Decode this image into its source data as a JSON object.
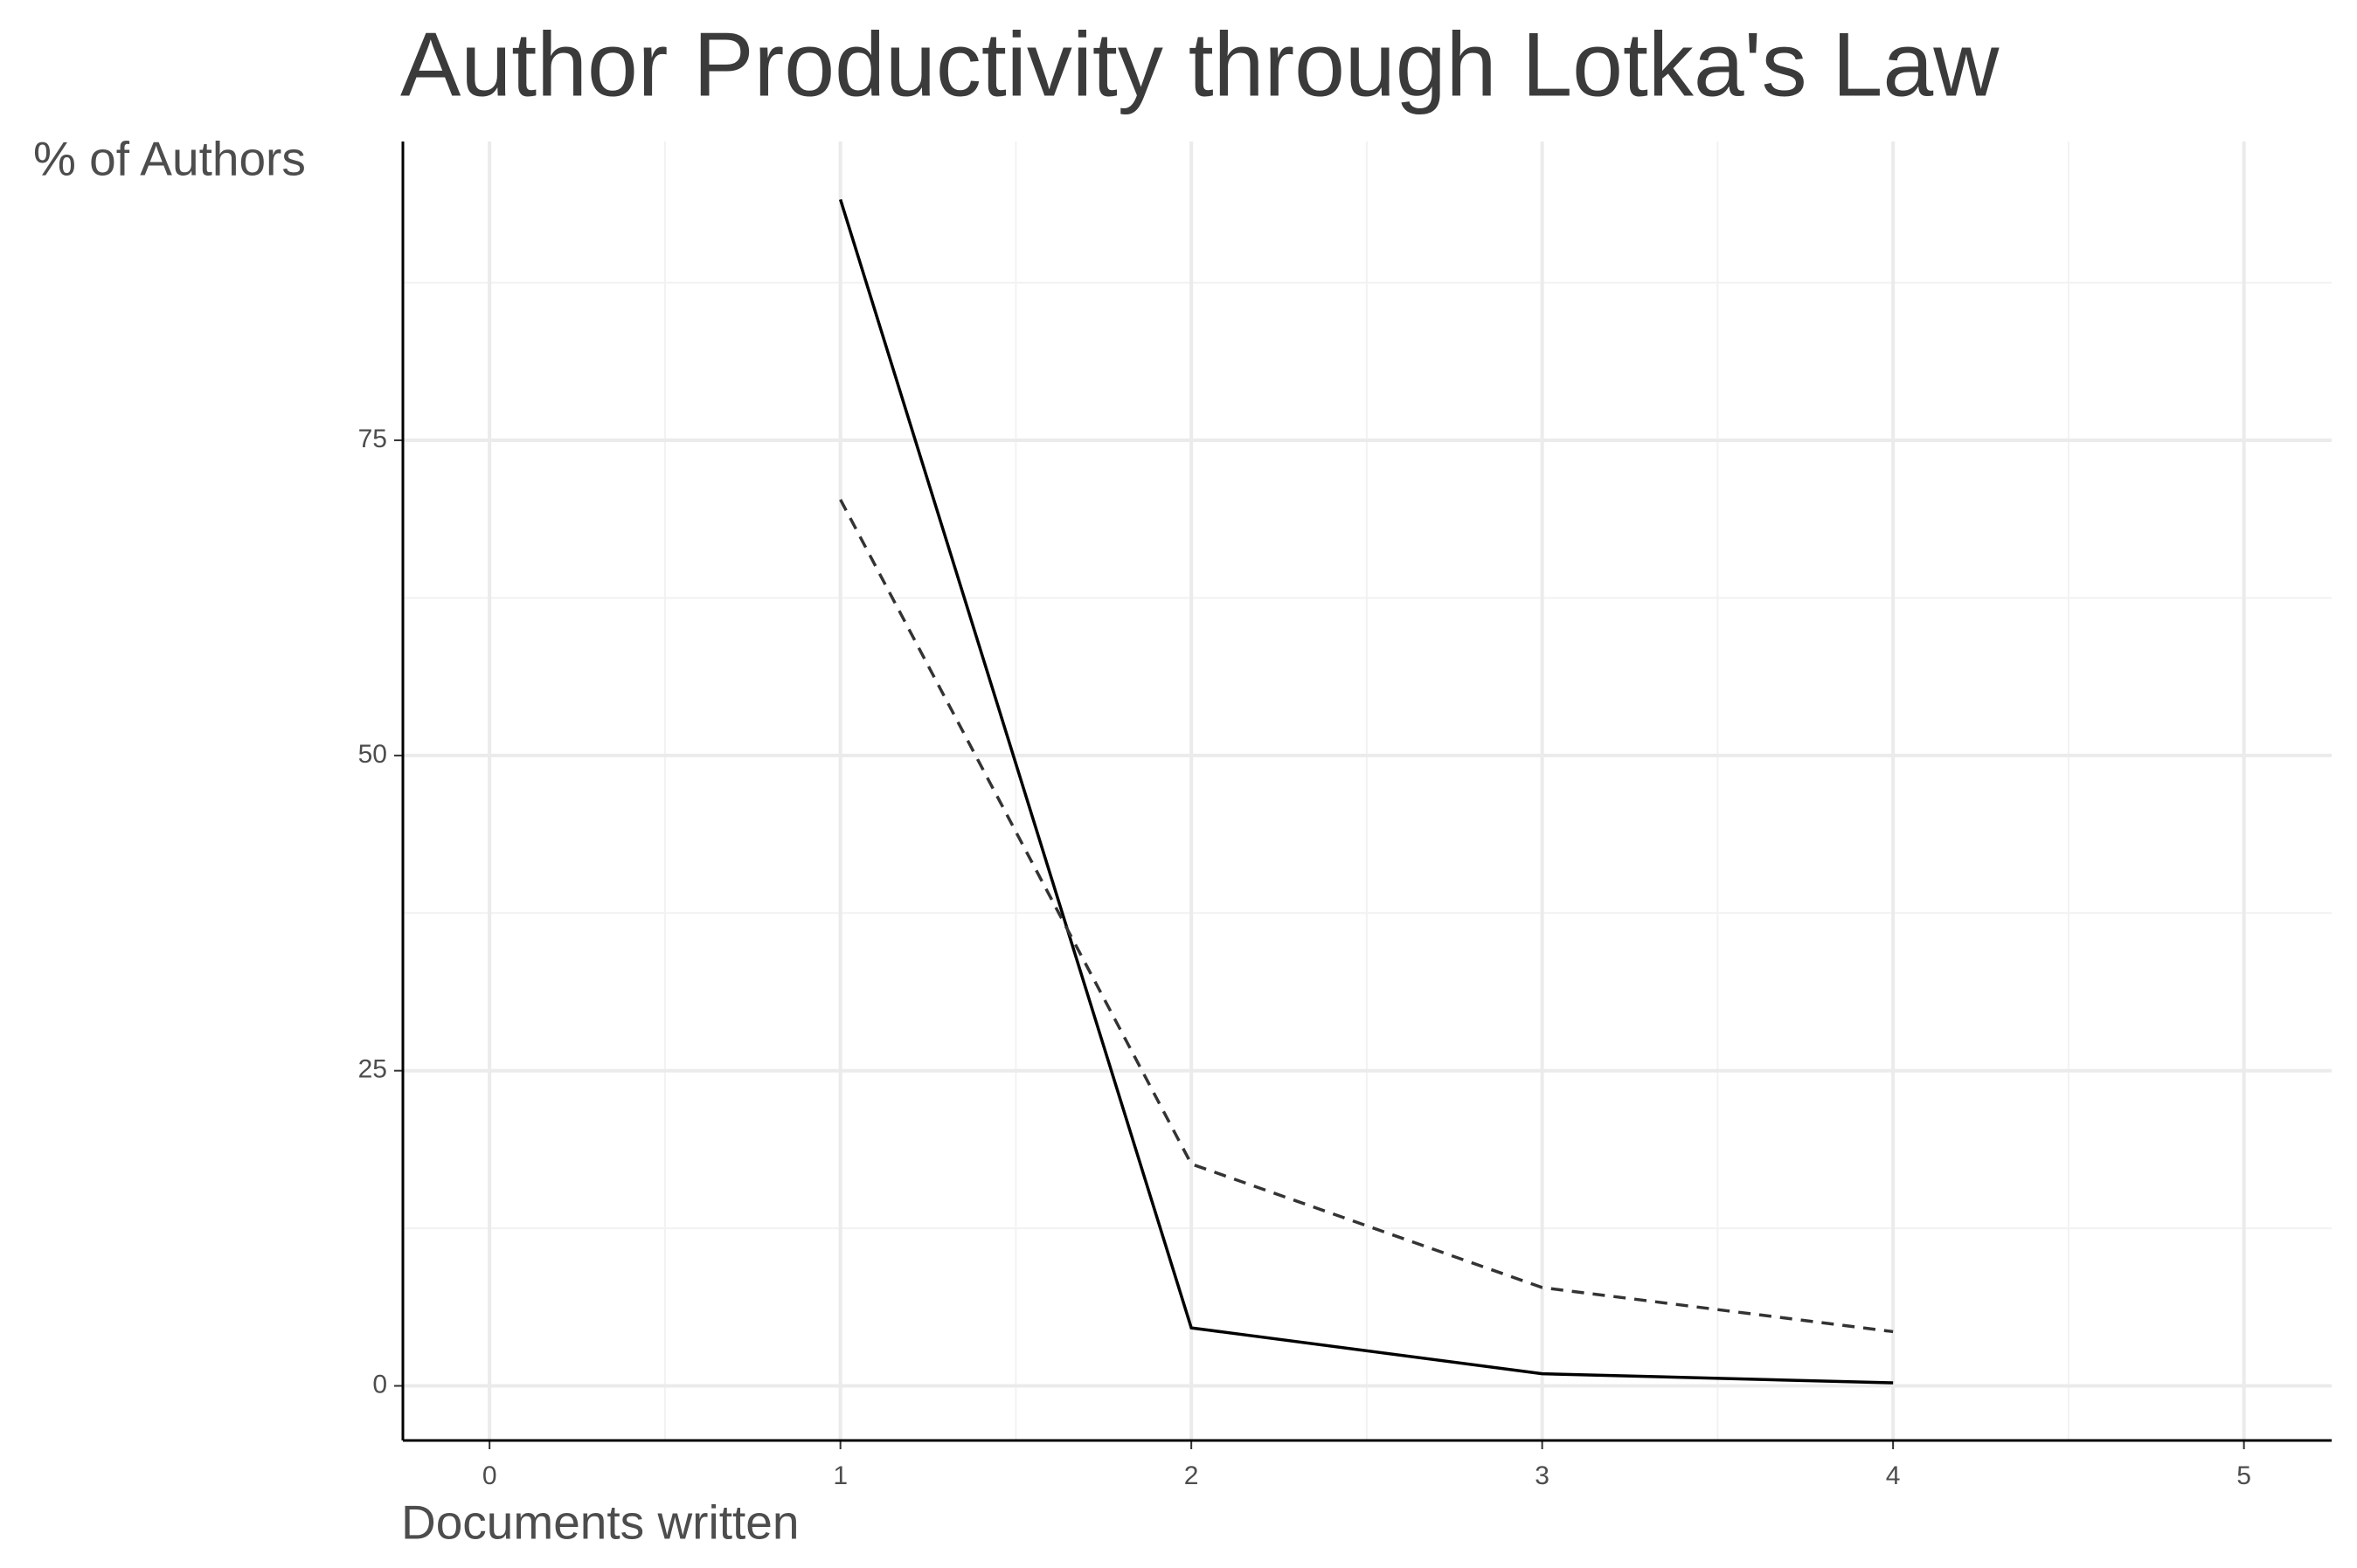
{
  "chart_data": {
    "type": "line",
    "title": "Author Productivity through Lotka's Law",
    "x_label": "Documents written",
    "y_label": "% of Authors",
    "x": [
      1,
      2,
      3,
      4
    ],
    "series": [
      {
        "color": "#000000",
        "dash": "solid",
        "values": [
          94.1,
          4.6,
          0.96,
          0.24
        ]
      },
      {
        "color": "#333333",
        "dash": "dashed",
        "values": [
          70.3,
          17.6,
          7.8,
          4.3
        ]
      }
    ],
    "xlim": [
      -0.247,
      5.25
    ],
    "ylim": [
      -4.33,
      98.7
    ],
    "xticks": [
      0,
      1,
      2,
      3,
      4,
      5
    ],
    "yticks": [
      0,
      25,
      50,
      75
    ],
    "xminor": [
      0.5,
      1.5,
      2.5,
      3.5,
      4.5
    ],
    "yminor": [
      12.5,
      37.5,
      62.5,
      87.5
    ],
    "grid": true
  }
}
